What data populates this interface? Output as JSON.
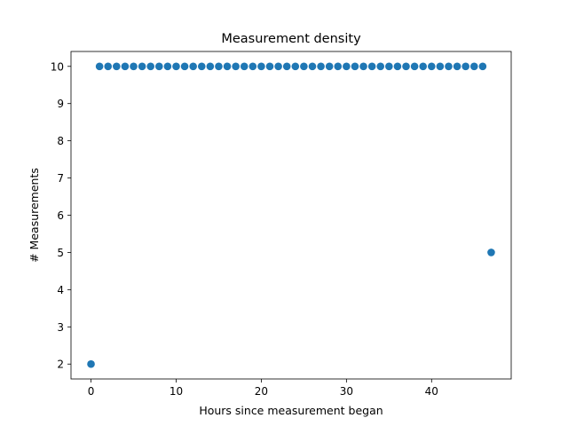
{
  "chart_data": {
    "type": "scatter",
    "title": "Measurement density",
    "xlabel": "Hours since measurement began",
    "ylabel": "# Measurements",
    "xlim": [
      -2.35,
      49.35
    ],
    "ylim": [
      1.6,
      10.4
    ],
    "xticks": [
      0,
      10,
      20,
      30,
      40
    ],
    "yticks": [
      2,
      3,
      4,
      5,
      6,
      7,
      8,
      9,
      10
    ],
    "grid": false,
    "color": "#1f77b4",
    "series": [
      {
        "x": [
          0,
          1,
          2,
          3,
          4,
          5,
          6,
          7,
          8,
          9,
          10,
          11,
          12,
          13,
          14,
          15,
          16,
          17,
          18,
          19,
          20,
          21,
          22,
          23,
          24,
          25,
          26,
          27,
          28,
          29,
          30,
          31,
          32,
          33,
          34,
          35,
          36,
          37,
          38,
          39,
          40,
          41,
          42,
          43,
          44,
          45,
          46,
          47
        ],
        "y": [
          2,
          10,
          10,
          10,
          10,
          10,
          10,
          10,
          10,
          10,
          10,
          10,
          10,
          10,
          10,
          10,
          10,
          10,
          10,
          10,
          10,
          10,
          10,
          10,
          10,
          10,
          10,
          10,
          10,
          10,
          10,
          10,
          10,
          10,
          10,
          10,
          10,
          10,
          10,
          10,
          10,
          10,
          10,
          10,
          10,
          10,
          10,
          5
        ]
      }
    ]
  }
}
